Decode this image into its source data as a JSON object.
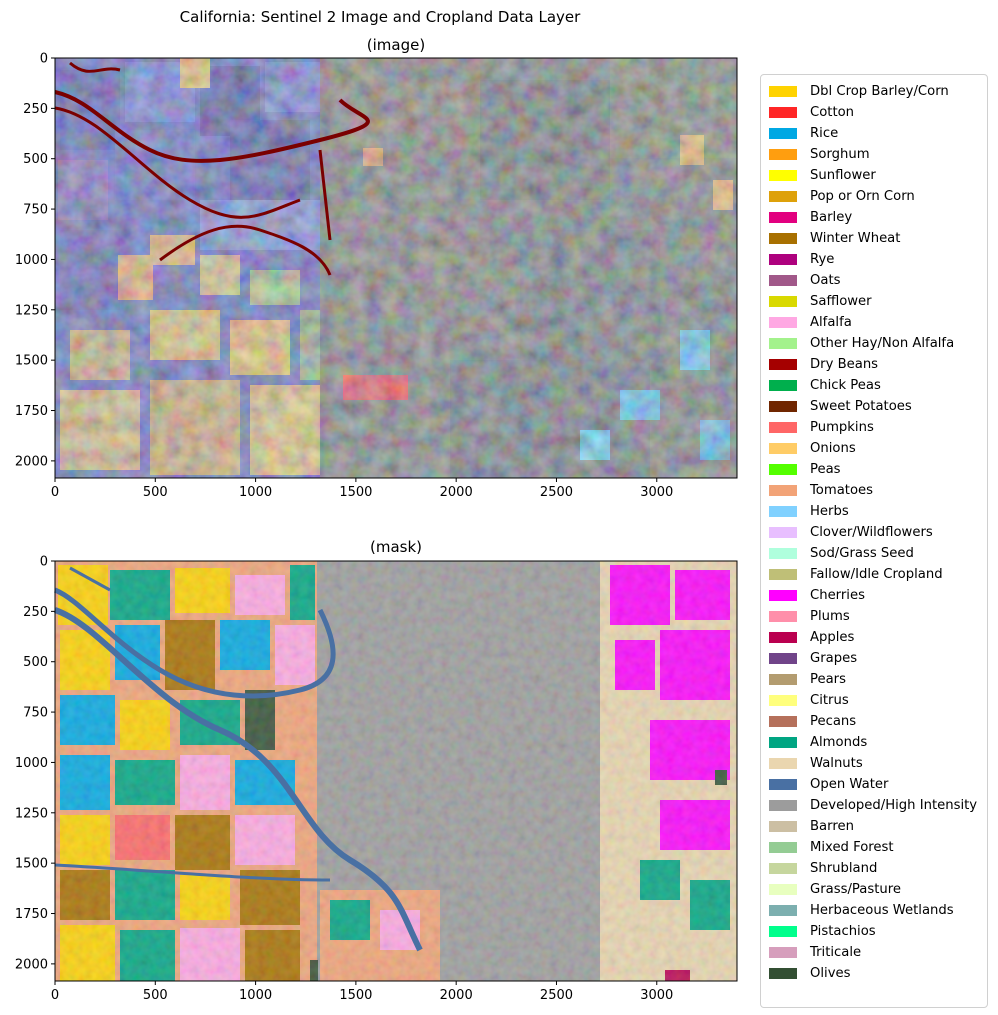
{
  "figure": {
    "title": "California: Sentinel 2 Image and Cropland Data Layer"
  },
  "panels": [
    {
      "title": "(image)",
      "xticks": [
        "0",
        "500",
        "1000",
        "1500",
        "2000",
        "2500",
        "3000"
      ],
      "yticks": [
        "0",
        "250",
        "500",
        "750",
        "1000",
        "1250",
        "1500",
        "1750",
        "2000"
      ],
      "xlim": [
        0,
        3400
      ],
      "ylim": [
        2085,
        0
      ]
    },
    {
      "title": "(mask)",
      "xticks": [
        "0",
        "500",
        "1000",
        "1500",
        "2000",
        "2500",
        "3000"
      ],
      "yticks": [
        "0",
        "250",
        "500",
        "750",
        "1000",
        "1250",
        "1500",
        "1750",
        "2000"
      ],
      "xlim": [
        0,
        3400
      ],
      "ylim": [
        2085,
        0
      ]
    }
  ],
  "legend": {
    "placement": "right",
    "items": [
      {
        "label": "Dbl Crop Barley/Corn",
        "color": "#ffd300"
      },
      {
        "label": "Cotton",
        "color": "#ff2626"
      },
      {
        "label": "Rice",
        "color": "#00a8e3"
      },
      {
        "label": "Sorghum",
        "color": "#ff9e0f"
      },
      {
        "label": "Sunflower",
        "color": "#ffff00"
      },
      {
        "label": "Pop or Orn Corn",
        "color": "#dea10a"
      },
      {
        "label": "Barley",
        "color": "#e2007f"
      },
      {
        "label": "Winter Wheat",
        "color": "#a87000"
      },
      {
        "label": "Rye",
        "color": "#ae017e"
      },
      {
        "label": "Oats",
        "color": "#a15889"
      },
      {
        "label": "Safflower",
        "color": "#d9d900"
      },
      {
        "label": "Alfalfa",
        "color": "#ffa8e3"
      },
      {
        "label": "Other Hay/Non Alfalfa",
        "color": "#a3f28c"
      },
      {
        "label": "Dry Beans",
        "color": "#a50000"
      },
      {
        "label": "Chick Peas",
        "color": "#00af4d"
      },
      {
        "label": "Sweet Potatoes",
        "color": "#702600"
      },
      {
        "label": "Pumpkins",
        "color": "#ff6666"
      },
      {
        "label": "Onions",
        "color": "#ffcc66"
      },
      {
        "label": "Peas",
        "color": "#54ff00"
      },
      {
        "label": "Tomatoes",
        "color": "#f2a377"
      },
      {
        "label": "Herbs",
        "color": "#80d1ff"
      },
      {
        "label": "Clover/Wildflowers",
        "color": "#e8bfff"
      },
      {
        "label": "Sod/Grass Seed",
        "color": "#afffdd"
      },
      {
        "label": "Fallow/Idle Cropland",
        "color": "#bfbf77"
      },
      {
        "label": "Cherries",
        "color": "#ff00ff"
      },
      {
        "label": "Plums",
        "color": "#ff8faa"
      },
      {
        "label": "Apples",
        "color": "#ba004f"
      },
      {
        "label": "Grapes",
        "color": "#704489"
      },
      {
        "label": "Pears",
        "color": "#b39c70"
      },
      {
        "label": "Citrus",
        "color": "#ffff7d"
      },
      {
        "label": "Pecans",
        "color": "#b5705b"
      },
      {
        "label": "Almonds",
        "color": "#00a582"
      },
      {
        "label": "Walnuts",
        "color": "#ead6af"
      },
      {
        "label": "Open Water",
        "color": "#4970a3"
      },
      {
        "label": "Developed/High Intensity",
        "color": "#9c9c9c"
      },
      {
        "label": "Barren",
        "color": "#ccbfa3"
      },
      {
        "label": "Mixed Forest",
        "color": "#94cc94"
      },
      {
        "label": "Shrubland",
        "color": "#c6d69e"
      },
      {
        "label": "Grass/Pasture",
        "color": "#e8ffbf"
      },
      {
        "label": "Herbaceous Wetlands",
        "color": "#7cafaf"
      },
      {
        "label": "Pistachios",
        "color": "#00ff8c"
      },
      {
        "label": "Triticale",
        "color": "#d69ebc"
      },
      {
        "label": "Olives",
        "color": "#334f33"
      }
    ]
  }
}
